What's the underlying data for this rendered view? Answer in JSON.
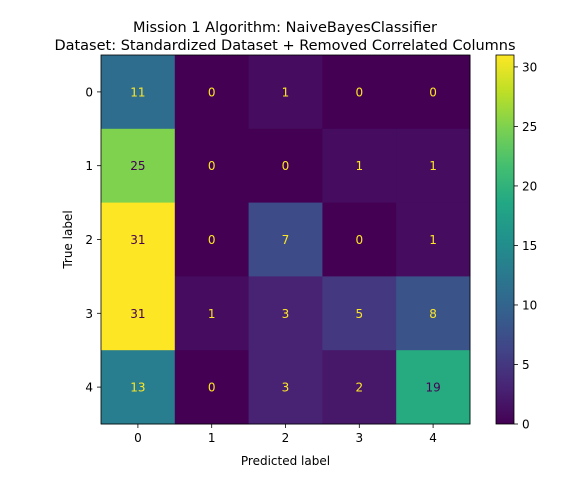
{
  "chart_data": {
    "type": "heatmap",
    "title": "Mission 1 Algorithm: NaiveBayesClassifier",
    "subtitle": "Dataset: Standardized Dataset + Removed Correlated Columns",
    "xlabel": "Predicted label",
    "ylabel": "True label",
    "x_categories": [
      "0",
      "1",
      "2",
      "3",
      "4"
    ],
    "y_categories": [
      "0",
      "1",
      "2",
      "3",
      "4"
    ],
    "matrix": [
      [
        11,
        0,
        1,
        0,
        0
      ],
      [
        25,
        0,
        0,
        1,
        1
      ],
      [
        31,
        0,
        7,
        0,
        1
      ],
      [
        31,
        1,
        3,
        5,
        8
      ],
      [
        13,
        0,
        3,
        2,
        19
      ]
    ],
    "colorbar": {
      "colormap": "viridis",
      "range": [
        0,
        31
      ],
      "ticks": [
        0,
        5,
        10,
        15,
        20,
        25,
        30
      ]
    },
    "text_colors": {
      "light": "#fde725",
      "dark": "#440154"
    }
  }
}
